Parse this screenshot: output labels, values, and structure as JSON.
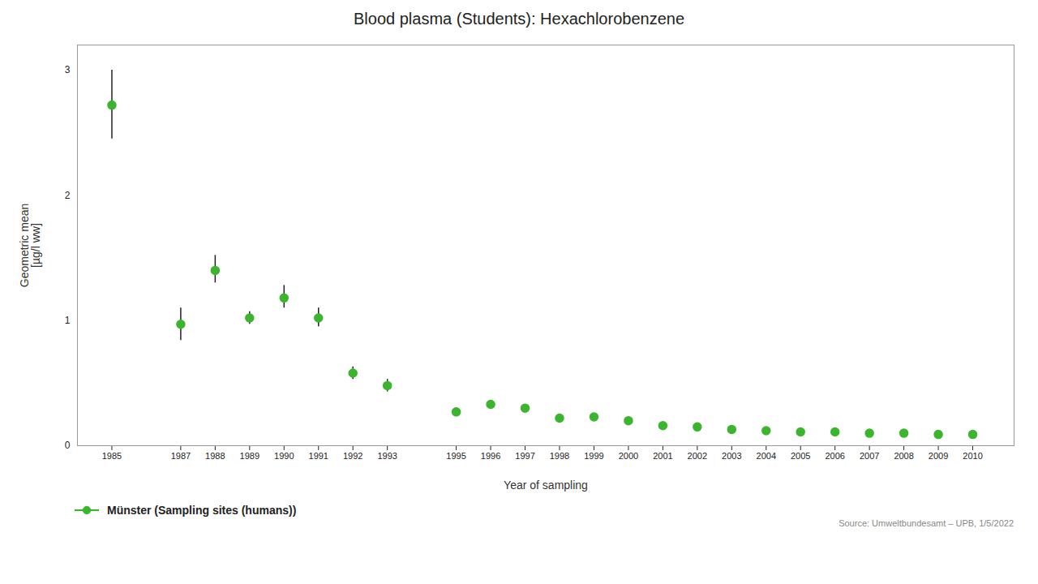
{
  "chart_data": {
    "type": "scatter",
    "title": "Blood plasma (Students): Hexachlorobenzene",
    "x_label": "Year of sampling",
    "y_label": "Geometric mean\n[µg/l ww]",
    "source": "Source: Umweltbundesamt – UPB, 1/5/2022",
    "x": [
      1985,
      1987,
      1988,
      1989,
      1990,
      1991,
      1992,
      1993,
      1995,
      1996,
      1997,
      1998,
      1999,
      2000,
      2001,
      2002,
      2003,
      2004,
      2005,
      2006,
      2007,
      2008,
      2009,
      2010
    ],
    "series": [
      {
        "name": "Münster (Sampling sites (humans))",
        "color": "#3cb52e",
        "marker": "o",
        "values": [
          2.72,
          0.97,
          1.4,
          1.02,
          1.18,
          1.02,
          0.58,
          0.48,
          0.27,
          0.33,
          0.3,
          0.22,
          0.23,
          0.2,
          0.16,
          0.15,
          0.13,
          0.12,
          0.11,
          0.11,
          0.1,
          0.1,
          0.09,
          0.09
        ],
        "err_low": [
          0.27,
          0.13,
          0.1,
          0.05,
          0.08,
          0.07,
          0.05,
          0.05,
          0.03,
          0.03,
          0.03,
          0.02,
          0.02,
          0.02,
          0.02,
          0.01,
          0.01,
          0.01,
          0.01,
          0.01,
          0.01,
          0.01,
          0.01,
          0.01
        ],
        "err_high": [
          0.28,
          0.13,
          0.12,
          0.05,
          0.1,
          0.08,
          0.05,
          0.05,
          0.03,
          0.03,
          0.03,
          0.02,
          0.02,
          0.02,
          0.02,
          0.01,
          0.01,
          0.01,
          0.01,
          0.01,
          0.01,
          0.01,
          0.01,
          0.01
        ]
      }
    ],
    "xlim": [
      1984.0,
      2011.2
    ],
    "xticks": [
      1985,
      1987,
      1988,
      1989,
      1990,
      1991,
      1992,
      1993,
      1995,
      1996,
      1997,
      1998,
      1999,
      2000,
      2001,
      2002,
      2003,
      2004,
      2005,
      2006,
      2007,
      2008,
      2009,
      2010
    ],
    "ylim": [
      0,
      3.2
    ],
    "yticks": [
      0,
      1,
      2,
      3
    ],
    "grid": "y",
    "legend": "bottom"
  }
}
